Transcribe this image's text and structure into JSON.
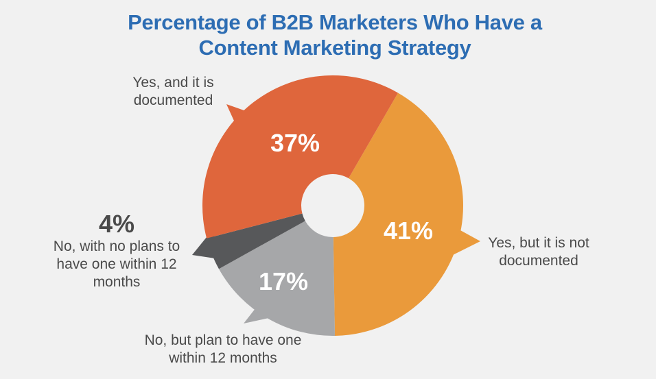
{
  "chart_data": {
    "type": "donut",
    "title": "Percentage of B2B Marketers Who Have a Content Marketing Strategy",
    "categories": [
      "Yes, but it is not documented",
      "No, but plan to have one within 12 months",
      "No, with no plans to have one within 12 months",
      "Yes, and it is documented"
    ],
    "values": [
      41,
      17,
      4,
      37
    ],
    "value_labels": [
      "41%",
      "17%",
      "4%",
      "37%"
    ],
    "colors": [
      "#ea9a3b",
      "#a6a7a9",
      "#57585a",
      "#df663c"
    ]
  }
}
